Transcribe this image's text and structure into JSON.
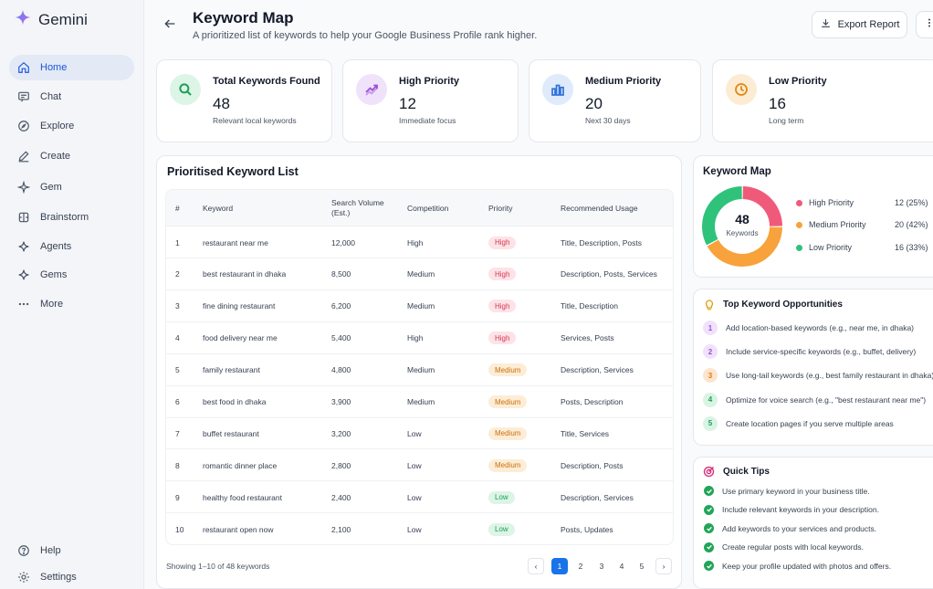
{
  "sidebar": {
    "brand": "Gemini",
    "items": [
      {
        "label": "Home",
        "icon": "home-icon"
      },
      {
        "label": "Chat",
        "icon": "chat-icon"
      },
      {
        "label": "Explore",
        "icon": "compass-icon"
      },
      {
        "label": "Create",
        "icon": "pencil-icon"
      },
      {
        "label": "Gem",
        "icon": "gem-icon"
      },
      {
        "label": "Brainstorm",
        "icon": "brain-icon"
      },
      {
        "label": "Agents",
        "icon": "sparkle-icon"
      },
      {
        "label": "Gems",
        "icon": "gems-icon"
      },
      {
        "label": "More",
        "icon": "dots-icon"
      }
    ],
    "bottom": [
      {
        "label": "Help",
        "icon": "help-icon"
      },
      {
        "label": "Settings",
        "icon": "gear-icon"
      }
    ]
  },
  "header": {
    "title": "Keyword Map",
    "subtitle": "A prioritized list of keywords to help your Google Business Profile rank higher.",
    "export_label": "Export Report"
  },
  "stats": [
    {
      "label": "Total Keywords Found",
      "value": "48",
      "sub": "Relevant local keywords",
      "icon": "search-icon",
      "bg": "#dcf5e6",
      "fg": "#1e9e57"
    },
    {
      "label": "High Priority",
      "value": "12",
      "sub": "Immediate focus",
      "icon": "trending-up-icon",
      "bg": "#f0e2fb",
      "fg": "#9b4fd6"
    },
    {
      "label": "Medium Priority",
      "value": "20",
      "sub": "Next 30 days",
      "icon": "bar-chart-icon",
      "bg": "#dfeafb",
      "fg": "#2b6fd8"
    },
    {
      "label": "Low Priority",
      "value": "16",
      "sub": "Long term",
      "icon": "clock-icon",
      "bg": "#fdecd4",
      "fg": "#e08a12"
    }
  ],
  "table": {
    "title": "Prioritised Keyword List",
    "headers": {
      "num": "#",
      "keyword": "Keyword",
      "volume_1": "Search Volume",
      "volume_2": "(Est.)",
      "competition": "Competition",
      "priority": "Priority",
      "usage": "Recommended Usage"
    },
    "rows": [
      {
        "num": "1",
        "keyword": "restaurant near me",
        "volume": "12,000",
        "competition": "High",
        "priority": "High",
        "usage": "Title, Description, Posts"
      },
      {
        "num": "2",
        "keyword": "best restaurant in dhaka",
        "volume": "8,500",
        "competition": "Medium",
        "priority": "High",
        "usage": "Description, Posts, Services"
      },
      {
        "num": "3",
        "keyword": "fine dining restaurant",
        "volume": "6,200",
        "competition": "Medium",
        "priority": "High",
        "usage": "Title, Description"
      },
      {
        "num": "4",
        "keyword": "food delivery near me",
        "volume": "5,400",
        "competition": "High",
        "priority": "High",
        "usage": "Services, Posts"
      },
      {
        "num": "5",
        "keyword": "family restaurant",
        "volume": "4,800",
        "competition": "Medium",
        "priority": "Medium",
        "usage": "Description, Services"
      },
      {
        "num": "6",
        "keyword": "best food in dhaka",
        "volume": "3,900",
        "competition": "Medium",
        "priority": "Medium",
        "usage": "Posts, Description"
      },
      {
        "num": "7",
        "keyword": "buffet restaurant",
        "volume": "3,200",
        "competition": "Low",
        "priority": "Medium",
        "usage": "Title, Services"
      },
      {
        "num": "8",
        "keyword": "romantic dinner place",
        "volume": "2,800",
        "competition": "Low",
        "priority": "Medium",
        "usage": "Description, Posts"
      },
      {
        "num": "9",
        "keyword": "healthy food restaurant",
        "volume": "2,400",
        "competition": "Low",
        "priority": "Low",
        "usage": "Description, Services"
      },
      {
        "num": "10",
        "keyword": "restaurant open now",
        "volume": "2,100",
        "competition": "Low",
        "priority": "Low",
        "usage": "Posts, Updates"
      }
    ],
    "footer": "Showing 1–10 of 48 keywords",
    "pages": [
      "1",
      "2",
      "3",
      "4",
      "5"
    ],
    "current_page": "1",
    "prev_symbol": "‹",
    "next_symbol": "›"
  },
  "keyword_map": {
    "title": "Keyword Map",
    "total": "48",
    "total_label": "Keywords",
    "legend": [
      {
        "label": "High Priority",
        "value": "12 (25%)",
        "color": "#f05a7a",
        "fraction": 0.25
      },
      {
        "label": "Medium Priority",
        "value": "20 (42%)",
        "color": "#f7a23b",
        "fraction": 0.42
      },
      {
        "label": "Low Priority",
        "value": "16 (33%)",
        "color": "#2fc27a",
        "fraction": 0.33
      }
    ]
  },
  "opportunities": {
    "title": "Top Keyword Opportunities",
    "items": [
      {
        "num": "1",
        "text": "Add location-based keywords (e.g., near me, in dhaka)",
        "bg": "#efe2fb",
        "fg": "#9b4fd6"
      },
      {
        "num": "2",
        "text": "Include service-specific keywords (e.g., buffet, delivery)",
        "bg": "#efe2fb",
        "fg": "#9b4fd6"
      },
      {
        "num": "3",
        "text": "Use long-tail keywords (e.g., best family restaurant in dhaka)",
        "bg": "#fde4cc",
        "fg": "#e07b12"
      },
      {
        "num": "4",
        "text": "Optimize for voice search (e.g., \"best restaurant near me\")",
        "bg": "#d9f3e4",
        "fg": "#1e9e57"
      },
      {
        "num": "5",
        "text": "Create location pages if you serve multiple areas",
        "bg": "#d9f3e4",
        "fg": "#1e9e57"
      }
    ]
  },
  "tips": {
    "title": "Quick Tips",
    "items": [
      "Use primary keyword in your business title.",
      "Include relevant keywords in your description.",
      "Add keywords to your services and products.",
      "Create regular posts with local keywords.",
      "Keep your profile updated with photos and offers."
    ]
  },
  "colors": {
    "accent": "#1a73e8",
    "high_badge_bg": "#fde3e7",
    "high_badge_fg": "#d9364f",
    "medium_badge_bg": "#fdedd6",
    "medium_badge_fg": "#c9700f",
    "low_badge_bg": "#dcf5e6",
    "low_badge_fg": "#1e9e57"
  }
}
